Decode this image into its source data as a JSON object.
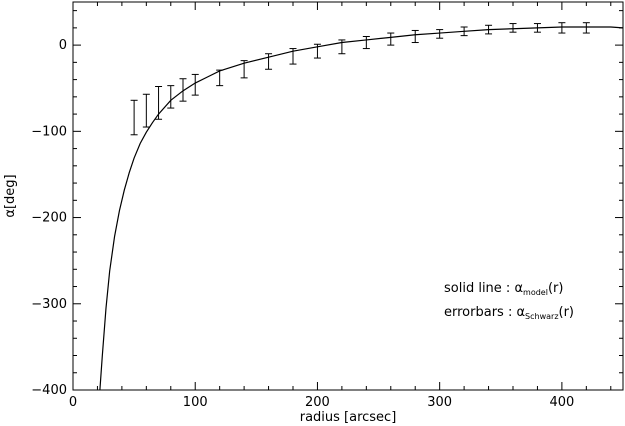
{
  "chart_data": {
    "type": "line",
    "xlabel": "radius [arcsec]",
    "ylabel": "α[deg]",
    "xlim": [
      0,
      450
    ],
    "ylim": [
      -400,
      50
    ],
    "x_ticks": [
      0,
      100,
      200,
      300,
      400
    ],
    "y_ticks": [
      -400,
      -300,
      -200,
      -100,
      0
    ],
    "x_tick_labels": [
      "0",
      "100",
      "200",
      "300",
      "400"
    ],
    "y_tick_labels": [
      "−400",
      "−300",
      "−200",
      "−100",
      "0"
    ],
    "grid": false,
    "legend_position": "bottom-right",
    "legend": [
      {
        "prefix": "solid line : ",
        "symbol": "α",
        "subscript": "model",
        "suffix": "(r)"
      },
      {
        "prefix": "errorbars : ",
        "symbol": "α",
        "subscript": "Schwarz",
        "suffix": "(r)"
      }
    ],
    "series": [
      {
        "style": "solid-line",
        "x": [
          22,
          24,
          27,
          30,
          34,
          38,
          42,
          46,
          50,
          55,
          60,
          65,
          70,
          80,
          90,
          100,
          110,
          120,
          140,
          160,
          180,
          200,
          220,
          240,
          260,
          280,
          300,
          320,
          340,
          360,
          380,
          400,
          420,
          440,
          450
        ],
        "y": [
          -400,
          -360,
          -305,
          -262,
          -222,
          -192,
          -168,
          -148,
          -131,
          -114,
          -101,
          -90,
          -80,
          -64,
          -53,
          -44,
          -37,
          -30,
          -21,
          -14,
          -7,
          -2,
          3,
          6,
          9,
          12,
          14,
          16,
          18,
          19,
          20,
          21,
          21,
          21,
          20
        ]
      },
      {
        "style": "errorbars",
        "x": [
          50,
          60,
          70,
          80,
          90,
          100,
          120,
          140,
          160,
          180,
          200,
          220,
          240,
          260,
          280,
          300,
          320,
          340,
          360,
          380,
          400,
          420
        ],
        "y": [
          -84,
          -76,
          -67,
          -60,
          -52,
          -46,
          -38,
          -28,
          -19,
          -13,
          -7,
          -2,
          3,
          7,
          10,
          13,
          16,
          18,
          20,
          20,
          20,
          20
        ],
        "err": [
          20,
          19,
          19,
          13,
          13,
          12,
          9,
          10,
          9,
          9,
          8,
          8,
          7,
          7,
          7,
          5,
          5,
          5,
          5,
          5,
          6,
          6
        ]
      }
    ]
  }
}
